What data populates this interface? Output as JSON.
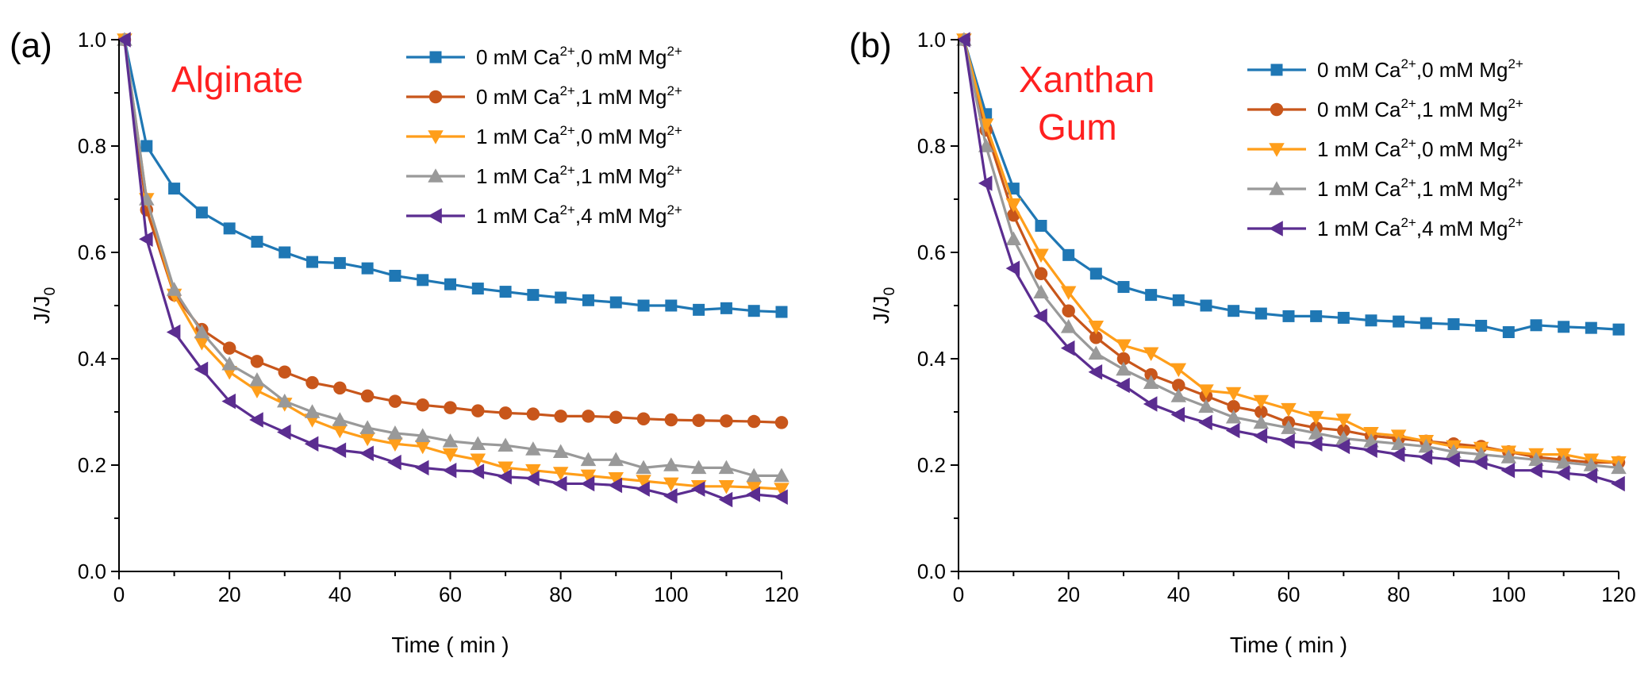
{
  "figure": {
    "colors": {
      "series": [
        "#1f77b4",
        "#c8561b",
        "#ff9e1a",
        "#999999",
        "#5b2d90"
      ],
      "annotation": "#ff2020",
      "axis": "#000000"
    }
  },
  "chart_data": [
    {
      "type": "line",
      "panel_label": "(a)",
      "annotation": [
        "Alginate"
      ],
      "xlabel": "Time ( min )",
      "ylabel": "J/J",
      "ylabel_sub": "0",
      "xlim": [
        0,
        120
      ],
      "ylim": [
        0,
        1.0
      ],
      "xticks": [
        0,
        20,
        40,
        60,
        80,
        100,
        120
      ],
      "yticks": [
        0.0,
        0.2,
        0.4,
        0.6,
        0.8,
        1.0
      ],
      "xtick_labels": [
        "0",
        "20",
        "40",
        "60",
        "80",
        "100",
        "120"
      ],
      "ytick_labels": [
        "0.0",
        "0.2",
        "0.4",
        "0.6",
        "0.8",
        "1.0"
      ],
      "legend": {
        "position": "top-right"
      },
      "series": [
        {
          "name": "0 mM Ca2+,0 mM Mg2+",
          "label_parts": [
            "0 mM Ca",
            "2+",
            ",0 mM Mg",
            "2+"
          ],
          "marker": "square",
          "color": "#1f77b4",
          "x": [
            1,
            5,
            10,
            15,
            20,
            25,
            30,
            35,
            40,
            45,
            50,
            55,
            60,
            65,
            70,
            75,
            80,
            85,
            90,
            95,
            100,
            105,
            110,
            115,
            120
          ],
          "y": [
            1.0,
            0.8,
            0.72,
            0.675,
            0.645,
            0.62,
            0.6,
            0.582,
            0.58,
            0.57,
            0.556,
            0.548,
            0.54,
            0.532,
            0.526,
            0.52,
            0.515,
            0.51,
            0.506,
            0.5,
            0.5,
            0.492,
            0.495,
            0.49,
            0.488
          ]
        },
        {
          "name": "0 mM Ca2+,1 mM Mg2+",
          "label_parts": [
            "0 mM Ca",
            "2+",
            ",1 mM Mg",
            "2+"
          ],
          "marker": "circle",
          "color": "#c8561b",
          "x": [
            1,
            5,
            10,
            15,
            20,
            25,
            30,
            35,
            40,
            45,
            50,
            55,
            60,
            65,
            70,
            75,
            80,
            85,
            90,
            95,
            100,
            105,
            110,
            115,
            120
          ],
          "y": [
            1.0,
            0.68,
            0.52,
            0.455,
            0.42,
            0.395,
            0.375,
            0.355,
            0.345,
            0.33,
            0.32,
            0.313,
            0.308,
            0.302,
            0.298,
            0.296,
            0.292,
            0.292,
            0.29,
            0.287,
            0.285,
            0.284,
            0.283,
            0.282,
            0.28
          ]
        },
        {
          "name": "1 mM Ca2+,0 mM Mg2+",
          "label_parts": [
            "1 mM Ca",
            "2+",
            ",0 mM Mg",
            "2+"
          ],
          "marker": "triangle-down",
          "color": "#ff9e1a",
          "x": [
            1,
            5,
            10,
            15,
            20,
            25,
            30,
            35,
            40,
            45,
            50,
            55,
            60,
            65,
            70,
            75,
            80,
            85,
            90,
            95,
            100,
            105,
            110,
            115,
            120
          ],
          "y": [
            1.0,
            0.7,
            0.52,
            0.43,
            0.375,
            0.34,
            0.315,
            0.285,
            0.265,
            0.25,
            0.24,
            0.235,
            0.22,
            0.21,
            0.195,
            0.19,
            0.185,
            0.18,
            0.175,
            0.17,
            0.165,
            0.16,
            0.16,
            0.158,
            0.155
          ]
        },
        {
          "name": "1 mM Ca2+,1 mM Mg2+",
          "label_parts": [
            "1 mM Ca",
            "2+",
            ",1 mM Mg",
            "2+"
          ],
          "marker": "triangle-up",
          "color": "#999999",
          "x": [
            1,
            5,
            10,
            15,
            20,
            25,
            30,
            35,
            40,
            45,
            50,
            55,
            60,
            65,
            70,
            75,
            80,
            85,
            90,
            95,
            100,
            105,
            110,
            115,
            120
          ],
          "y": [
            1.0,
            0.7,
            0.53,
            0.45,
            0.39,
            0.36,
            0.32,
            0.3,
            0.285,
            0.27,
            0.26,
            0.255,
            0.245,
            0.24,
            0.237,
            0.23,
            0.225,
            0.21,
            0.21,
            0.195,
            0.2,
            0.195,
            0.195,
            0.18,
            0.18
          ]
        },
        {
          "name": "1 mM Ca2+,4 mM Mg2+",
          "label_parts": [
            "1 mM Ca",
            "2+",
            ",4 mM Mg",
            "2+"
          ],
          "marker": "triangle-left",
          "color": "#5b2d90",
          "x": [
            1,
            5,
            10,
            15,
            20,
            25,
            30,
            35,
            40,
            45,
            50,
            55,
            60,
            65,
            70,
            75,
            80,
            85,
            90,
            95,
            100,
            105,
            110,
            115,
            120
          ],
          "y": [
            1.0,
            0.625,
            0.45,
            0.38,
            0.32,
            0.285,
            0.262,
            0.24,
            0.228,
            0.222,
            0.205,
            0.195,
            0.19,
            0.188,
            0.178,
            0.175,
            0.165,
            0.165,
            0.162,
            0.155,
            0.142,
            0.155,
            0.135,
            0.145,
            0.14
          ]
        }
      ]
    },
    {
      "type": "line",
      "panel_label": "(b)",
      "annotation": [
        "Xanthan",
        "Gum"
      ],
      "xlabel": "Time ( min )",
      "ylabel": "J/J",
      "ylabel_sub": "0",
      "xlim": [
        0,
        120
      ],
      "ylim": [
        0,
        1.0
      ],
      "xticks": [
        0,
        20,
        40,
        60,
        80,
        100,
        120
      ],
      "yticks": [
        0.0,
        0.2,
        0.4,
        0.6,
        0.8,
        1.0
      ],
      "xtick_labels": [
        "0",
        "20",
        "40",
        "60",
        "80",
        "100",
        "120"
      ],
      "ytick_labels": [
        "0.0",
        "0.2",
        "0.4",
        "0.6",
        "0.8",
        "1.0"
      ],
      "legend": {
        "position": "top-right"
      },
      "series": [
        {
          "name": "0 mM Ca2+,0 mM Mg2+",
          "label_parts": [
            "0 mM Ca",
            "2+",
            ",0 mM Mg",
            "2+"
          ],
          "marker": "square",
          "color": "#1f77b4",
          "x": [
            1,
            5,
            10,
            15,
            20,
            25,
            30,
            35,
            40,
            45,
            50,
            55,
            60,
            65,
            70,
            75,
            80,
            85,
            90,
            95,
            100,
            105,
            110,
            115,
            120
          ],
          "y": [
            1.0,
            0.86,
            0.72,
            0.65,
            0.595,
            0.56,
            0.535,
            0.52,
            0.51,
            0.5,
            0.49,
            0.485,
            0.48,
            0.48,
            0.477,
            0.472,
            0.47,
            0.467,
            0.465,
            0.462,
            0.45,
            0.463,
            0.46,
            0.458,
            0.455
          ]
        },
        {
          "name": "0 mM Ca2+,1 mM Mg2+",
          "label_parts": [
            "0 mM Ca",
            "2+",
            ",1 mM Mg",
            "2+"
          ],
          "marker": "circle",
          "color": "#c8561b",
          "x": [
            1,
            5,
            10,
            15,
            20,
            25,
            30,
            35,
            40,
            45,
            50,
            55,
            60,
            65,
            70,
            75,
            80,
            85,
            90,
            95,
            100,
            105,
            110,
            115,
            120
          ],
          "y": [
            1.0,
            0.83,
            0.67,
            0.56,
            0.49,
            0.44,
            0.4,
            0.37,
            0.35,
            0.33,
            0.31,
            0.3,
            0.28,
            0.27,
            0.265,
            0.255,
            0.25,
            0.245,
            0.24,
            0.235,
            0.225,
            0.215,
            0.21,
            0.205,
            0.205
          ]
        },
        {
          "name": "1 mM Ca2+,0 mM Mg2+",
          "label_parts": [
            "1 mM Ca",
            "2+",
            ",0 mM Mg",
            "2+"
          ],
          "marker": "triangle-down",
          "color": "#ff9e1a",
          "x": [
            1,
            5,
            10,
            15,
            20,
            25,
            30,
            35,
            40,
            45,
            50,
            55,
            60,
            65,
            70,
            75,
            80,
            85,
            90,
            95,
            100,
            105,
            110,
            115,
            120
          ],
          "y": [
            1.0,
            0.84,
            0.69,
            0.595,
            0.525,
            0.46,
            0.425,
            0.41,
            0.38,
            0.34,
            0.335,
            0.32,
            0.305,
            0.29,
            0.285,
            0.26,
            0.255,
            0.245,
            0.235,
            0.232,
            0.225,
            0.22,
            0.22,
            0.21,
            0.205
          ]
        },
        {
          "name": "1 mM Ca2+,1 mM Mg2+",
          "label_parts": [
            "1 mM Ca",
            "2+",
            ",1 mM Mg",
            "2+"
          ],
          "marker": "triangle-up",
          "color": "#999999",
          "x": [
            1,
            5,
            10,
            15,
            20,
            25,
            30,
            35,
            40,
            45,
            50,
            55,
            60,
            65,
            70,
            75,
            80,
            85,
            90,
            95,
            100,
            105,
            110,
            115,
            120
          ],
          "y": [
            1.0,
            0.8,
            0.625,
            0.525,
            0.46,
            0.41,
            0.38,
            0.355,
            0.33,
            0.31,
            0.29,
            0.28,
            0.27,
            0.26,
            0.25,
            0.245,
            0.24,
            0.235,
            0.225,
            0.22,
            0.215,
            0.21,
            0.205,
            0.2,
            0.195
          ]
        },
        {
          "name": "1 mM Ca2+,4 mM Mg2+",
          "label_parts": [
            "1 mM Ca",
            "2+",
            ",4 mM Mg",
            "2+"
          ],
          "marker": "triangle-left",
          "color": "#5b2d90",
          "x": [
            1,
            5,
            10,
            15,
            20,
            25,
            30,
            35,
            40,
            45,
            50,
            55,
            60,
            65,
            70,
            75,
            80,
            85,
            90,
            95,
            100,
            105,
            110,
            115,
            120
          ],
          "y": [
            1.0,
            0.73,
            0.57,
            0.48,
            0.42,
            0.375,
            0.35,
            0.315,
            0.295,
            0.28,
            0.265,
            0.255,
            0.245,
            0.24,
            0.235,
            0.228,
            0.22,
            0.215,
            0.21,
            0.205,
            0.19,
            0.19,
            0.185,
            0.18,
            0.165
          ]
        }
      ]
    }
  ]
}
